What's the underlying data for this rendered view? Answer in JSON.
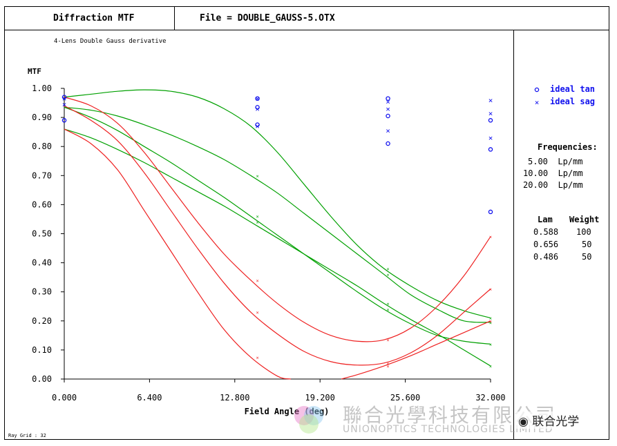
{
  "header": {
    "plot_title": "Diffraction MTF",
    "file_label": "File = DOUBLE_GAUSS-5.OTX"
  },
  "chart_data": {
    "type": "line",
    "subtitle": "4-Lens Double Gauss derivative",
    "ylabel": "MTF",
    "xlabel": "Field Angle (deg)",
    "xlim": [
      0,
      32
    ],
    "ylim": [
      0,
      1
    ],
    "x_ticks": [
      "0.000",
      "6.400",
      "12.800",
      "19.200",
      "25.600",
      "32.000"
    ],
    "y_ticks": [
      "0.00",
      "0.10",
      "0.20",
      "0.30",
      "0.40",
      "0.50",
      "0.60",
      "0.70",
      "0.80",
      "0.90",
      "1.00"
    ],
    "footer_note": "Ray Grid : 32",
    "colors": {
      "green": "#00a000",
      "red": "#ee2020",
      "ideal": "#1010ee"
    },
    "series": [
      {
        "color_key": "green",
        "x": [
          0,
          2,
          4,
          6,
          8,
          10,
          12,
          14,
          16,
          18,
          20,
          22,
          24,
          26,
          28,
          30,
          32
        ],
        "values": [
          0.97,
          0.98,
          0.99,
          0.995,
          0.99,
          0.97,
          0.93,
          0.87,
          0.78,
          0.67,
          0.56,
          0.46,
          0.38,
          0.32,
          0.27,
          0.235,
          0.21
        ]
      },
      {
        "color_key": "green",
        "x": [
          0,
          2,
          4,
          6,
          8,
          10,
          12,
          14,
          16,
          18,
          20,
          22,
          24,
          26,
          28,
          30,
          32
        ],
        "values": [
          0.935,
          0.925,
          0.905,
          0.875,
          0.84,
          0.8,
          0.755,
          0.7,
          0.64,
          0.57,
          0.5,
          0.43,
          0.36,
          0.29,
          0.24,
          0.2,
          0.195
        ]
      },
      {
        "color_key": "green",
        "x": [
          0,
          2,
          4,
          6,
          8,
          10,
          12,
          14,
          16,
          18,
          20,
          22,
          24,
          26,
          28,
          30,
          32
        ],
        "values": [
          0.86,
          0.83,
          0.79,
          0.745,
          0.695,
          0.645,
          0.595,
          0.54,
          0.485,
          0.43,
          0.375,
          0.32,
          0.26,
          0.205,
          0.155,
          0.1,
          0.045
        ]
      },
      {
        "color_key": "green",
        "x": [
          0,
          2,
          4,
          6,
          8,
          10,
          12,
          14,
          16,
          18,
          20,
          22,
          24,
          26,
          28,
          30,
          32
        ],
        "values": [
          0.935,
          0.9,
          0.855,
          0.8,
          0.745,
          0.685,
          0.625,
          0.56,
          0.495,
          0.43,
          0.365,
          0.3,
          0.24,
          0.19,
          0.15,
          0.13,
          0.12
        ]
      },
      {
        "color_key": "red",
        "x": [
          0,
          2,
          4,
          6,
          8,
          10,
          12,
          14,
          16,
          18,
          20,
          22,
          24,
          26,
          28,
          30,
          32
        ],
        "values": [
          0.97,
          0.94,
          0.88,
          0.78,
          0.66,
          0.54,
          0.43,
          0.34,
          0.26,
          0.195,
          0.15,
          0.13,
          0.135,
          0.175,
          0.25,
          0.355,
          0.49
        ]
      },
      {
        "color_key": "red",
        "x": [
          0,
          2,
          4,
          6,
          8,
          10,
          12,
          14,
          16,
          18,
          20,
          22,
          24,
          26,
          28,
          30,
          32
        ],
        "values": [
          0.94,
          0.89,
          0.82,
          0.71,
          0.58,
          0.45,
          0.33,
          0.23,
          0.155,
          0.095,
          0.06,
          0.048,
          0.055,
          0.09,
          0.15,
          0.23,
          0.31
        ]
      },
      {
        "color_key": "red",
        "x": [
          0,
          2,
          4,
          6,
          8,
          10,
          12,
          14,
          16,
          17,
          19,
          20.8,
          22,
          24,
          26,
          28,
          30,
          32
        ],
        "values": [
          0.86,
          0.81,
          0.72,
          0.58,
          0.44,
          0.3,
          0.17,
          0.075,
          0.01,
          0.0,
          null,
          0.0,
          0.015,
          0.045,
          0.08,
          0.12,
          0.16,
          0.2
        ]
      }
    ],
    "ideal_tan": [
      {
        "x": 0,
        "y": 0.97
      },
      {
        "x": 0,
        "y": 0.89
      },
      {
        "x": 14.5,
        "y": 0.965
      },
      {
        "x": 14.5,
        "y": 0.935
      },
      {
        "x": 14.5,
        "y": 0.875
      },
      {
        "x": 24.3,
        "y": 0.965
      },
      {
        "x": 24.3,
        "y": 0.905
      },
      {
        "x": 24.3,
        "y": 0.81
      },
      {
        "x": 32,
        "y": 0.89
      },
      {
        "x": 32,
        "y": 0.79
      },
      {
        "x": 32,
        "y": 0.575
      }
    ],
    "ideal_sag": [
      {
        "x": 0,
        "y": 0.965
      },
      {
        "x": 0,
        "y": 0.945
      },
      {
        "x": 14.5,
        "y": 0.965
      },
      {
        "x": 14.5,
        "y": 0.93
      },
      {
        "x": 14.5,
        "y": 0.87
      },
      {
        "x": 24.3,
        "y": 0.955
      },
      {
        "x": 24.3,
        "y": 0.93
      },
      {
        "x": 24.3,
        "y": 0.855
      },
      {
        "x": 32,
        "y": 0.96
      },
      {
        "x": 32,
        "y": 0.915
      },
      {
        "x": 32,
        "y": 0.83
      }
    ],
    "legend": {
      "placement": "top-right",
      "tan_label": "ideal tan",
      "sag_label": "ideal sag"
    }
  },
  "side_panel": {
    "frequencies_title": "Frequencies:",
    "frequencies": [
      "5.00  Lp/mm",
      "10.00  Lp/mm",
      "20.00  Lp/mm"
    ],
    "lam_header": "Lam",
    "weight_header": "Weight",
    "rows": [
      {
        "lam": "0.588",
        "weight": "100"
      },
      {
        "lam": "0.656",
        "weight": "50"
      },
      {
        "lam": "0.486",
        "weight": "50"
      }
    ]
  },
  "watermark": {
    "company_cn": "聯合光學科技有限公司",
    "company_en": "UNIONOPTICS TECHNOLOGIES LIMITED",
    "tag": "联合光学"
  }
}
